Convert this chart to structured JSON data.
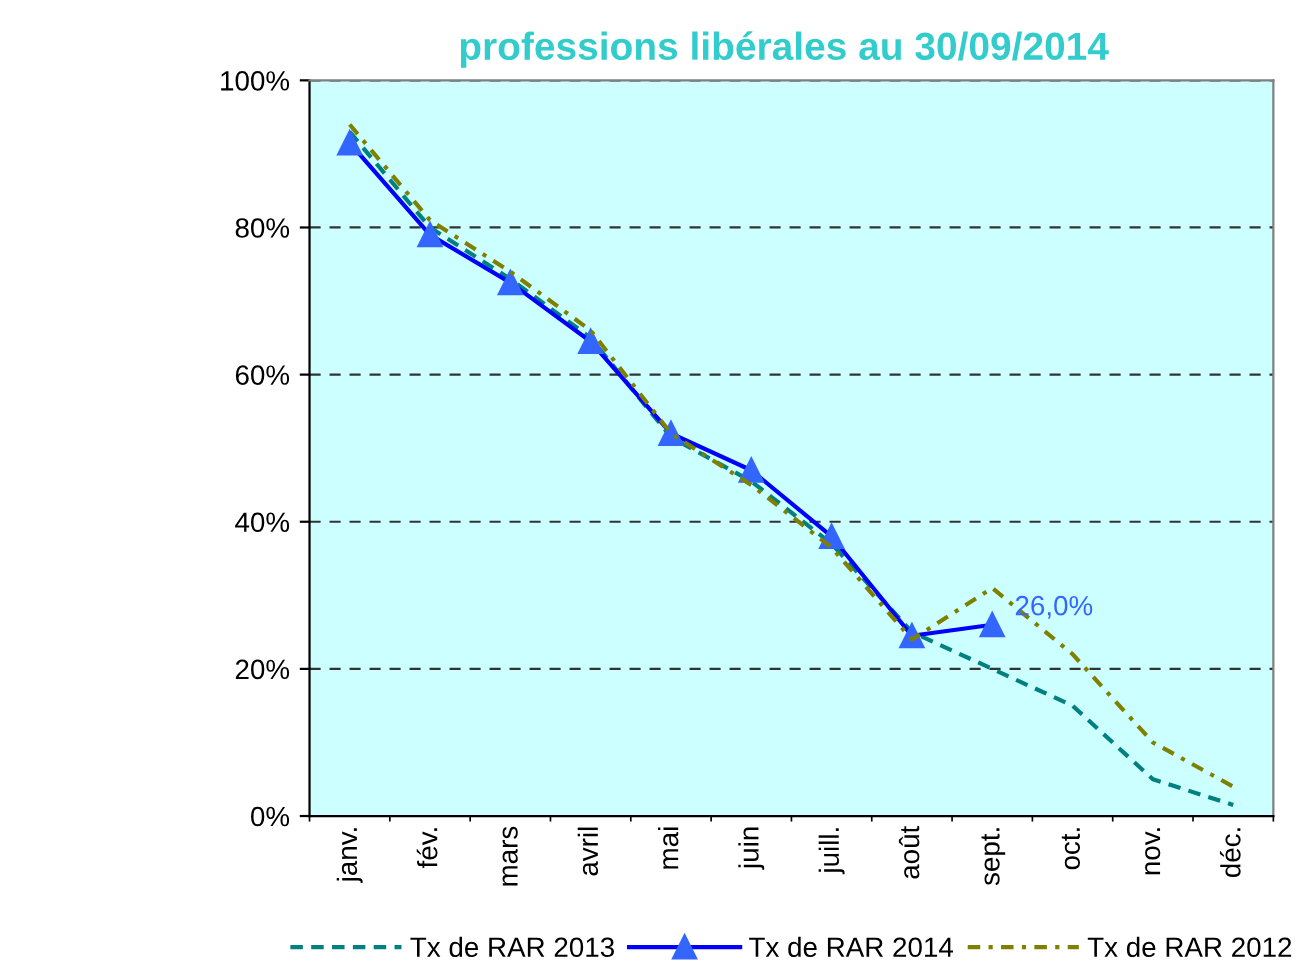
{
  "chart_data": {
    "type": "line",
    "title": "professions libérales au 30/09/2014",
    "categories": [
      "janv.",
      "fév.",
      "mars",
      "avril",
      "mai",
      "juin",
      "juill.",
      "août",
      "sept.",
      "oct.",
      "nov.",
      "déc."
    ],
    "series": [
      {
        "name": "Tx de RAR 2013",
        "color": "#008080",
        "line_style": "dashed",
        "marker": "none",
        "values": [
          93,
          80,
          73,
          65,
          51.5,
          45.5,
          37,
          25,
          20,
          15,
          5,
          1.5
        ]
      },
      {
        "name": "Tx de RAR 2014",
        "color": "#0000ff",
        "line_style": "solid",
        "marker": "triangle",
        "values": [
          91.5,
          79,
          72.5,
          64.5,
          52,
          47,
          38,
          24.5,
          26.0,
          null,
          null,
          null
        ],
        "value_labels": [
          null,
          null,
          null,
          null,
          null,
          null,
          null,
          null,
          "26,0%",
          null,
          null,
          null
        ]
      },
      {
        "name": "Tx de RAR 2012",
        "color": "#808000",
        "line_style": "dashdot",
        "marker": "none",
        "values": [
          94,
          81,
          74,
          66,
          52,
          45,
          36.5,
          24,
          31,
          22,
          10,
          4
        ]
      }
    ],
    "ylim": [
      0,
      100
    ],
    "yticks": [
      {
        "value": 0,
        "label": "0%"
      },
      {
        "value": 20,
        "label": "20%"
      },
      {
        "value": 40,
        "label": "40%"
      },
      {
        "value": 60,
        "label": "60%"
      },
      {
        "value": 80,
        "label": "80%"
      },
      {
        "value": 100,
        "label": "100%"
      }
    ],
    "grid": "y",
    "legend": "bottom"
  }
}
